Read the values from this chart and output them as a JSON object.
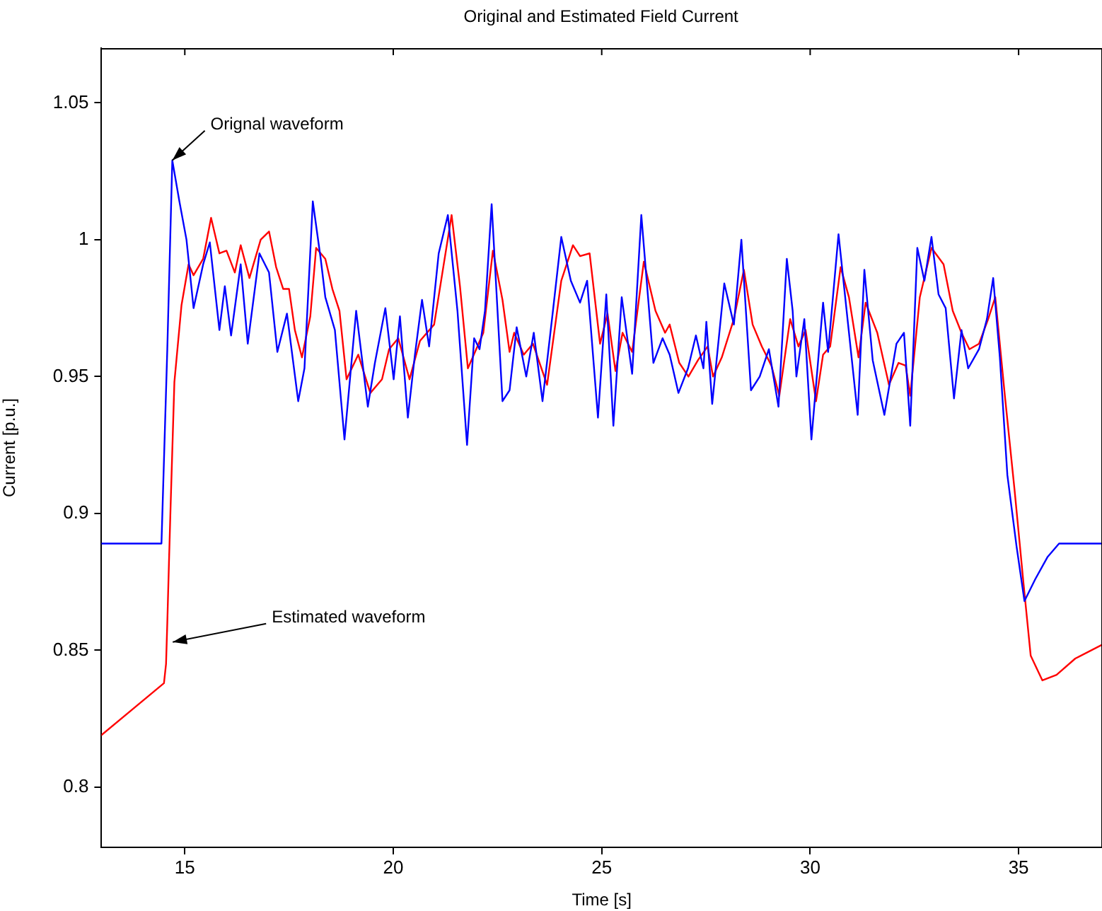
{
  "chart_data": {
    "type": "line",
    "title": "Original and Estimated Field Current",
    "xlabel": "Time [s]",
    "ylabel": "Current [p.u.]",
    "xlim": [
      13,
      37
    ],
    "ylim": [
      0.778,
      1.07
    ],
    "xticks": [
      15,
      20,
      25,
      30,
      35
    ],
    "yticks": [
      0.8,
      0.85,
      0.9,
      0.95,
      1,
      1.05
    ],
    "grid": false,
    "legend": false,
    "annotations": [
      {
        "text": "Orignal waveform",
        "x": 14.7,
        "y": 1.029
      },
      {
        "text": "Estimated waveform",
        "x": 14.71,
        "y": 0.853
      }
    ],
    "series": [
      {
        "color": "#0000ff",
        "x": [
          13,
          14.44,
          14.58,
          14.7,
          14.87,
          15.04,
          15.21,
          15.44,
          15.6,
          15.83,
          15.96,
          16.11,
          16.34,
          16.51,
          16.79,
          17.02,
          17.22,
          17.45,
          17.72,
          17.87,
          18.07,
          18.26,
          18.37,
          18.6,
          18.83,
          19.11,
          19.39,
          19.56,
          19.81,
          20.01,
          20.16,
          20.35,
          20.52,
          20.69,
          20.86,
          21.09,
          21.31,
          21.54,
          21.77,
          21.94,
          22.07,
          22.2,
          22.36,
          22.62,
          22.79,
          22.96,
          23.19,
          23.37,
          23.58,
          23.83,
          24.03,
          24.26,
          24.48,
          24.65,
          24.91,
          25.11,
          25.28,
          25.48,
          25.73,
          25.95,
          26.24,
          26.46,
          26.63,
          26.84,
          27.07,
          27.26,
          27.44,
          27.51,
          27.65,
          27.94,
          28.17,
          28.35,
          28.58,
          28.79,
          29.01,
          29.24,
          29.44,
          29.58,
          29.67,
          29.86,
          30.03,
          30.31,
          30.43,
          30.68,
          30.91,
          31.14,
          31.3,
          31.5,
          31.78,
          32.07,
          32.25,
          32.4,
          32.57,
          32.74,
          32.91,
          33.08,
          33.25,
          33.45,
          33.63,
          33.79,
          34.05,
          34.24,
          34.39,
          34.55,
          34.73,
          34.95,
          35.14,
          35.4,
          35.69,
          35.97,
          37
        ],
        "values": [
          0.889,
          0.889,
          0.96,
          1.029,
          1.014,
          1.0,
          0.975,
          0.991,
          0.999,
          0.967,
          0.983,
          0.965,
          0.991,
          0.962,
          0.995,
          0.988,
          0.959,
          0.973,
          0.941,
          0.953,
          1.014,
          0.993,
          0.979,
          0.967,
          0.927,
          0.974,
          0.939,
          0.955,
          0.975,
          0.949,
          0.972,
          0.935,
          0.958,
          0.978,
          0.961,
          0.995,
          1.009,
          0.974,
          0.925,
          0.964,
          0.96,
          0.974,
          1.013,
          0.941,
          0.945,
          0.968,
          0.95,
          0.966,
          0.941,
          0.974,
          1.001,
          0.985,
          0.977,
          0.985,
          0.935,
          0.98,
          0.932,
          0.979,
          0.951,
          1.009,
          0.955,
          0.964,
          0.958,
          0.944,
          0.953,
          0.965,
          0.953,
          0.97,
          0.94,
          0.984,
          0.969,
          1.0,
          0.945,
          0.95,
          0.96,
          0.939,
          0.993,
          0.974,
          0.95,
          0.971,
          0.927,
          0.977,
          0.959,
          1.002,
          0.969,
          0.936,
          0.989,
          0.956,
          0.936,
          0.962,
          0.966,
          0.932,
          0.997,
          0.985,
          1.001,
          0.98,
          0.975,
          0.942,
          0.967,
          0.953,
          0.96,
          0.971,
          0.986,
          0.957,
          0.914,
          0.888,
          0.868,
          0.876,
          0.884,
          0.889,
          0.889
        ]
      },
      {
        "color": "#ff0000",
        "x": [
          13,
          14.5,
          14.55,
          14.58,
          14.62,
          14.66,
          14.75,
          14.92,
          15.09,
          15.21,
          15.44,
          15.63,
          15.83,
          16.0,
          16.2,
          16.34,
          16.55,
          16.82,
          17.02,
          17.19,
          17.36,
          17.5,
          17.64,
          17.81,
          18.01,
          18.15,
          18.37,
          18.54,
          18.71,
          18.88,
          19.16,
          19.45,
          19.73,
          19.9,
          20.12,
          20.39,
          20.64,
          20.98,
          21.2,
          21.4,
          21.6,
          21.79,
          21.99,
          22.16,
          22.39,
          22.62,
          22.79,
          22.9,
          23.13,
          23.35,
          23.69,
          24.03,
          24.31,
          24.48,
          24.71,
          24.96,
          25.14,
          25.33,
          25.5,
          25.73,
          26.01,
          26.29,
          26.52,
          26.63,
          26.86,
          27.08,
          27.31,
          27.54,
          27.67,
          27.88,
          28.17,
          28.41,
          28.62,
          28.84,
          29.07,
          29.26,
          29.52,
          29.72,
          29.89,
          30.14,
          30.31,
          30.48,
          30.73,
          30.93,
          31.16,
          31.33,
          31.61,
          31.89,
          32.12,
          32.29,
          32.4,
          32.63,
          32.91,
          33.2,
          33.42,
          33.63,
          33.82,
          34.05,
          34.27,
          34.44,
          34.67,
          34.9,
          35.12,
          35.29,
          35.57,
          35.91,
          36.36,
          37
        ],
        "values": [
          0.819,
          0.838,
          0.845,
          0.86,
          0.882,
          0.903,
          0.948,
          0.976,
          0.991,
          0.987,
          0.993,
          1.008,
          0.995,
          0.996,
          0.988,
          0.998,
          0.986,
          1.0,
          1.003,
          0.99,
          0.982,
          0.982,
          0.967,
          0.957,
          0.972,
          0.997,
          0.993,
          0.982,
          0.974,
          0.949,
          0.958,
          0.944,
          0.949,
          0.96,
          0.964,
          0.949,
          0.963,
          0.969,
          0.99,
          1.009,
          0.983,
          0.953,
          0.96,
          0.966,
          0.996,
          0.978,
          0.959,
          0.966,
          0.958,
          0.962,
          0.947,
          0.985,
          0.998,
          0.994,
          0.995,
          0.962,
          0.973,
          0.952,
          0.966,
          0.959,
          0.992,
          0.974,
          0.966,
          0.969,
          0.955,
          0.95,
          0.956,
          0.961,
          0.95,
          0.957,
          0.971,
          0.989,
          0.969,
          0.961,
          0.954,
          0.943,
          0.971,
          0.961,
          0.967,
          0.941,
          0.958,
          0.961,
          0.99,
          0.979,
          0.957,
          0.977,
          0.966,
          0.947,
          0.955,
          0.954,
          0.943,
          0.979,
          0.997,
          0.991,
          0.974,
          0.966,
          0.96,
          0.962,
          0.971,
          0.979,
          0.943,
          0.909,
          0.874,
          0.848,
          0.839,
          0.841,
          0.847,
          0.852
        ]
      }
    ]
  }
}
